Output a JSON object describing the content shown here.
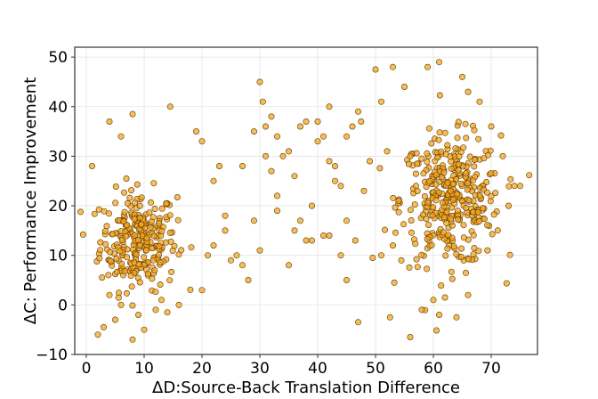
{
  "chart_data": {
    "type": "scatter",
    "title": "",
    "xlabel": "ΔD:Source-Back Translation Difference",
    "ylabel": "ΔC: Performance Improvement",
    "xlim": [
      -2,
      78
    ],
    "ylim": [
      -10,
      52
    ],
    "xticks": [
      0,
      10,
      20,
      30,
      40,
      50,
      60,
      70
    ],
    "yticks": [
      -10,
      0,
      10,
      20,
      30,
      40,
      50
    ],
    "grid": true,
    "legend": "none",
    "marker_color": "#f5a623",
    "marker_edge_color": "#5a3a00",
    "clusters": [
      {
        "center_x": 9,
        "center_y": 13,
        "spread_x": 3.3,
        "spread_y": 5.0,
        "count": 260
      },
      {
        "center_x": 63,
        "center_y": 21,
        "spread_x": 4.3,
        "spread_y": 6.5,
        "count": 360
      }
    ],
    "points": [
      [
        1,
        28
      ],
      [
        4,
        37
      ],
      [
        6,
        34
      ],
      [
        8,
        38.5
      ],
      [
        14.5,
        40
      ],
      [
        19,
        35
      ],
      [
        20,
        33
      ],
      [
        22,
        25
      ],
      [
        23,
        28
      ],
      [
        24,
        18
      ],
      [
        25,
        9
      ],
      [
        26,
        10
      ],
      [
        27,
        28
      ],
      [
        28,
        5
      ],
      [
        29,
        35
      ],
      [
        30,
        45
      ],
      [
        30.5,
        41
      ],
      [
        31,
        36
      ],
      [
        31,
        30
      ],
      [
        32,
        38
      ],
      [
        32,
        27
      ],
      [
        33,
        22
      ],
      [
        33,
        34
      ],
      [
        33,
        19
      ],
      [
        34,
        30
      ],
      [
        35,
        31
      ],
      [
        36,
        26
      ],
      [
        37,
        36
      ],
      [
        38,
        37
      ],
      [
        38,
        13
      ],
      [
        39,
        20
      ],
      [
        40,
        37
      ],
      [
        40,
        33
      ],
      [
        41,
        34
      ],
      [
        42,
        14
      ],
      [
        42,
        29
      ],
      [
        42,
        40
      ],
      [
        43,
        28
      ],
      [
        44,
        24
      ],
      [
        45,
        34
      ],
      [
        45,
        5
      ],
      [
        46,
        36
      ],
      [
        47,
        39
      ],
      [
        47.5,
        37
      ],
      [
        48,
        23
      ],
      [
        49,
        29
      ],
      [
        50,
        47.5
      ],
      [
        51,
        41
      ],
      [
        52,
        31
      ],
      [
        53,
        48
      ],
      [
        54,
        21
      ],
      [
        55,
        44
      ],
      [
        56,
        30
      ],
      [
        57,
        24
      ],
      [
        47,
        -3.5
      ],
      [
        52.5,
        -2.5
      ],
      [
        56,
        -6.5
      ],
      [
        58,
        -1
      ],
      [
        60,
        1
      ],
      [
        61,
        -2
      ],
      [
        62,
        1.5
      ],
      [
        64,
        -2.5
      ],
      [
        66,
        2
      ],
      [
        46.5,
        13
      ],
      [
        49.5,
        9.5
      ],
      [
        51,
        10
      ],
      [
        53,
        12
      ],
      [
        27,
        8
      ],
      [
        24,
        15
      ],
      [
        22,
        12
      ],
      [
        21,
        10
      ],
      [
        20,
        3
      ],
      [
        29,
        17
      ],
      [
        30,
        11
      ],
      [
        35,
        8
      ],
      [
        36,
        15
      ],
      [
        37,
        17
      ],
      [
        39,
        13
      ],
      [
        41,
        14
      ],
      [
        43,
        25
      ],
      [
        44,
        10
      ],
      [
        45,
        17
      ],
      [
        61,
        49
      ],
      [
        66,
        43
      ],
      [
        68,
        41
      ],
      [
        59,
        48
      ],
      [
        65,
        46
      ],
      [
        70,
        36
      ],
      [
        72,
        30
      ],
      [
        74,
        24
      ],
      [
        75,
        24
      ],
      [
        73,
        20
      ],
      [
        2,
        -6
      ],
      [
        3,
        -4.5
      ],
      [
        5,
        -3
      ],
      [
        8,
        -7
      ],
      [
        10,
        -5
      ],
      [
        12,
        -1
      ],
      [
        14,
        -1.5
      ],
      [
        16,
        0
      ],
      [
        13,
        1
      ],
      [
        9,
        -2
      ],
      [
        6,
        0
      ],
      [
        4,
        2
      ]
    ]
  }
}
